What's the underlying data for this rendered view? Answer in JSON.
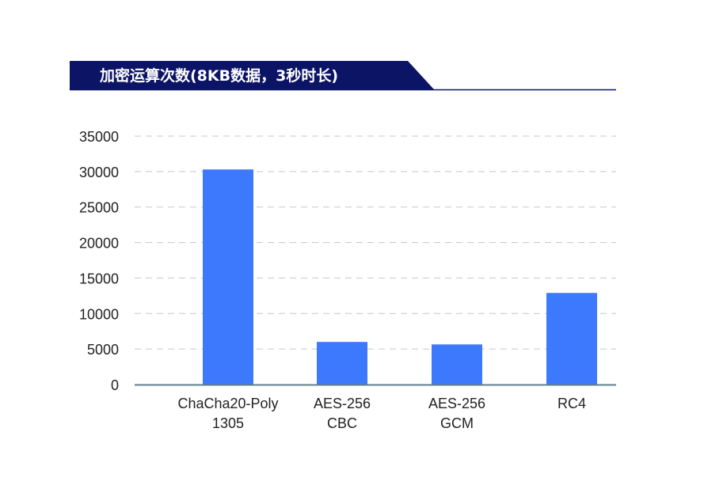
{
  "chart_data": {
    "type": "bar",
    "title": "加密运算次数(8KB数据，3秒时长)",
    "xlabel": "",
    "ylabel": "",
    "categories": [
      [
        "ChaCha20-Poly",
        "1305"
      ],
      [
        "AES-256",
        "CBC"
      ],
      [
        "AES-256",
        "GCM"
      ],
      [
        "RC4"
      ]
    ],
    "values": [
      30300,
      6000,
      5650,
      12900
    ],
    "ylim": [
      0,
      35000
    ],
    "yticks": [
      "0",
      "5000",
      "10000",
      "15000",
      "20000",
      "25000",
      "30000",
      "35000"
    ],
    "grid": true,
    "legend": "none"
  },
  "colors": {
    "bar": "#3d79fd",
    "title_band": "#0c1466",
    "grid": "#c8c8c8",
    "axis": "#5f7f8a"
  }
}
